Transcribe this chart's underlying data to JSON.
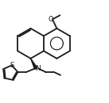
{
  "bg_color": "#ffffff",
  "line_color": "#1a1a1a",
  "line_width": 1.3,
  "fig_width": 1.37,
  "fig_height": 1.3,
  "dpi": 100,
  "xlim": [
    -1.5,
    8.5
  ],
  "ylim": [
    -3.5,
    6.0
  ]
}
